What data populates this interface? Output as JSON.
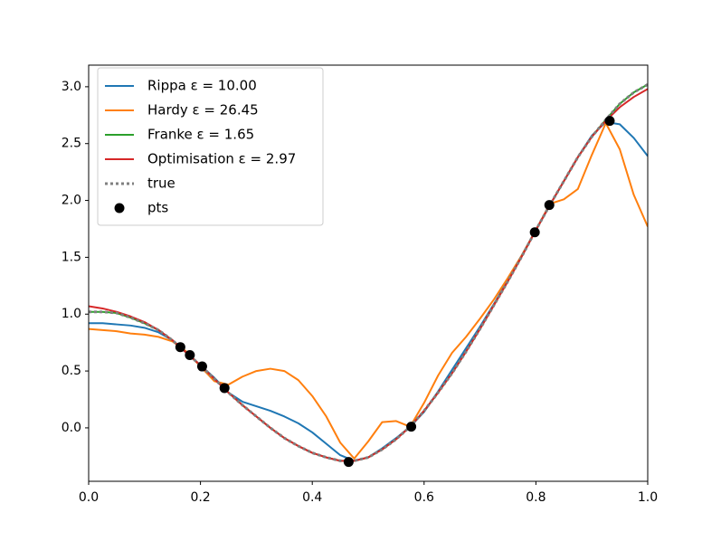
{
  "chart_data": {
    "type": "line",
    "x": [
      0,
      0.025,
      0.05,
      0.075,
      0.1,
      0.125,
      0.15,
      0.175,
      0.2,
      0.225,
      0.25,
      0.275,
      0.3,
      0.325,
      0.35,
      0.375,
      0.4,
      0.425,
      0.45,
      0.475,
      0.5,
      0.525,
      0.55,
      0.575,
      0.6,
      0.625,
      0.65,
      0.675,
      0.7,
      0.725,
      0.75,
      0.775,
      0.8,
      0.825,
      0.85,
      0.875,
      0.9,
      0.925,
      0.95,
      0.975,
      1.0
    ],
    "series": [
      {
        "name": "Rippa ε = 10.00",
        "color": "#1f77b4",
        "style": "solid",
        "values": [
          0.92,
          0.92,
          0.91,
          0.9,
          0.88,
          0.84,
          0.77,
          0.66,
          0.55,
          0.44,
          0.31,
          0.23,
          0.19,
          0.15,
          0.1,
          0.04,
          -0.04,
          -0.14,
          -0.24,
          -0.29,
          -0.26,
          -0.18,
          -0.09,
          0.01,
          0.14,
          0.32,
          0.51,
          0.7,
          0.89,
          1.09,
          1.3,
          1.52,
          1.74,
          1.96,
          2.17,
          2.38,
          2.57,
          2.69,
          2.67,
          2.55,
          2.39
        ]
      },
      {
        "name": "Hardy ε = 26.45",
        "color": "#ff7f0e",
        "style": "solid",
        "values": [
          0.87,
          0.86,
          0.85,
          0.83,
          0.82,
          0.8,
          0.76,
          0.67,
          0.54,
          0.41,
          0.38,
          0.45,
          0.5,
          0.52,
          0.5,
          0.42,
          0.28,
          0.1,
          -0.13,
          -0.27,
          -0.12,
          0.05,
          0.06,
          0.01,
          0.22,
          0.46,
          0.66,
          0.8,
          0.96,
          1.13,
          1.32,
          1.52,
          1.74,
          1.97,
          2.01,
          2.1,
          2.4,
          2.68,
          2.45,
          2.05,
          1.77
        ]
      },
      {
        "name": "Franke ε = 1.65",
        "color": "#2ca02c",
        "style": "solid",
        "values": [
          1.02,
          1.02,
          1.01,
          0.97,
          0.92,
          0.86,
          0.77,
          0.66,
          0.55,
          0.43,
          0.31,
          0.2,
          0.1,
          0.0,
          -0.09,
          -0.16,
          -0.22,
          -0.26,
          -0.29,
          -0.29,
          -0.26,
          -0.19,
          -0.1,
          0.01,
          0.15,
          0.31,
          0.48,
          0.67,
          0.87,
          1.08,
          1.29,
          1.51,
          1.74,
          1.96,
          2.17,
          2.38,
          2.56,
          2.71,
          2.85,
          2.95,
          3.02
        ]
      },
      {
        "name": "Optimisation ε = 2.97",
        "color": "#d62728",
        "style": "solid",
        "values": [
          1.07,
          1.05,
          1.02,
          0.98,
          0.93,
          0.86,
          0.77,
          0.66,
          0.55,
          0.43,
          0.31,
          0.2,
          0.1,
          0.0,
          -0.09,
          -0.16,
          -0.22,
          -0.26,
          -0.29,
          -0.29,
          -0.26,
          -0.19,
          -0.1,
          0.01,
          0.15,
          0.31,
          0.48,
          0.67,
          0.87,
          1.08,
          1.29,
          1.51,
          1.74,
          1.96,
          2.17,
          2.38,
          2.56,
          2.7,
          2.82,
          2.91,
          2.98
        ]
      },
      {
        "name": "true",
        "color": "#808080",
        "style": "dotted",
        "values": [
          1.02,
          1.02,
          1.01,
          0.97,
          0.92,
          0.86,
          0.77,
          0.66,
          0.55,
          0.43,
          0.31,
          0.2,
          0.1,
          0.0,
          -0.09,
          -0.16,
          -0.22,
          -0.26,
          -0.29,
          -0.29,
          -0.26,
          -0.19,
          -0.1,
          0.01,
          0.15,
          0.31,
          0.48,
          0.67,
          0.87,
          1.08,
          1.29,
          1.51,
          1.74,
          1.96,
          2.17,
          2.38,
          2.56,
          2.71,
          2.85,
          2.95,
          3.02
        ]
      },
      {
        "name": "pts",
        "color": "#000000",
        "style": "marker",
        "x": [
          0.164,
          0.181,
          0.203,
          0.243,
          0.465,
          0.577,
          0.798,
          0.824,
          0.932
        ],
        "values": [
          0.71,
          0.64,
          0.54,
          0.35,
          -0.3,
          0.01,
          1.72,
          1.96,
          2.7
        ]
      }
    ],
    "xlim": [
      0,
      1
    ],
    "ylim": [
      -0.47,
      3.19
    ],
    "xticks": [
      {
        "value": 0,
        "label": "0.0"
      },
      0.2,
      0.4,
      0.6,
      0.8,
      {
        "value": 1,
        "label": "1.0"
      }
    ],
    "yticks": [
      {
        "value": 0,
        "label": "0.0"
      },
      0.5,
      {
        "value": 1,
        "label": "1.0"
      },
      1.5,
      {
        "value": 2,
        "label": "2.0"
      },
      2.5,
      {
        "value": 3,
        "label": "3.0"
      }
    ],
    "grid": false,
    "legend": "upper left"
  }
}
